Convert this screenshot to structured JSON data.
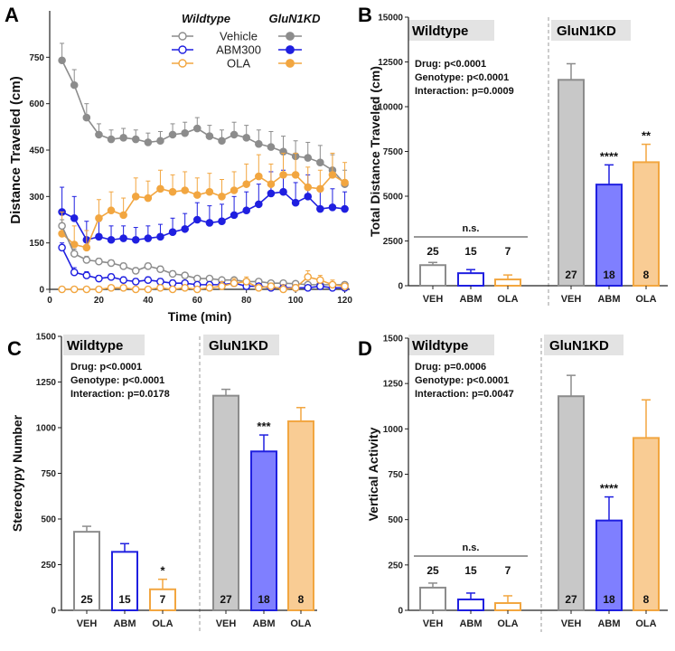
{
  "colors": {
    "vehicle": "#8c8c8c",
    "abm": "#1f1fe0",
    "ola": "#f2a640",
    "veh_fill": "#c8c8c8",
    "abm_fill": "#7f7fff",
    "ola_fill": "#f9cc94",
    "shade": "#e3e3e3"
  },
  "chart_data": [
    {
      "panel": "A",
      "type": "line",
      "xlabel": "Time (min)",
      "ylabel": "Distance Traveled (cm)",
      "xlim": [
        0,
        122
      ],
      "ylim": [
        0,
        900
      ],
      "xticks": [
        0,
        20,
        40,
        60,
        80,
        100,
        120
      ],
      "yticks": [
        0,
        150,
        300,
        450,
        600,
        750
      ],
      "legend": {
        "header_left": "Wildtype",
        "header_right": "GluN1KD",
        "labels": [
          "Vehicle",
          "ABM300",
          "OLA"
        ]
      },
      "x": [
        5,
        10,
        15,
        20,
        25,
        30,
        35,
        40,
        45,
        50,
        55,
        60,
        65,
        70,
        75,
        80,
        85,
        90,
        95,
        100,
        105,
        110,
        115,
        120
      ],
      "series": [
        {
          "name": "GluN1KD Vehicle",
          "color_key": "vehicle",
          "filled": true,
          "values": [
            740,
            660,
            555,
            500,
            485,
            490,
            485,
            475,
            480,
            500,
            505,
            520,
            495,
            480,
            500,
            490,
            470,
            460,
            445,
            430,
            425,
            410,
            385,
            340
          ],
          "errors": [
            55,
            50,
            45,
            35,
            30,
            30,
            30,
            30,
            30,
            35,
            35,
            35,
            35,
            35,
            40,
            40,
            45,
            50,
            50,
            50,
            50,
            55,
            50,
            45
          ]
        },
        {
          "name": "GluN1KD ABM300",
          "color_key": "abm",
          "filled": true,
          "values": [
            250,
            230,
            160,
            170,
            160,
            165,
            160,
            165,
            170,
            185,
            195,
            225,
            215,
            220,
            240,
            255,
            275,
            310,
            315,
            280,
            300,
            260,
            265,
            260
          ],
          "errors": [
            80,
            70,
            60,
            50,
            45,
            40,
            40,
            40,
            40,
            45,
            50,
            55,
            55,
            55,
            60,
            60,
            65,
            70,
            70,
            65,
            70,
            60,
            60,
            55
          ]
        },
        {
          "name": "GluN1KD OLA",
          "color_key": "ola",
          "filled": true,
          "values": [
            180,
            145,
            135,
            230,
            255,
            240,
            300,
            295,
            325,
            315,
            320,
            305,
            315,
            300,
            320,
            340,
            365,
            340,
            370,
            370,
            330,
            325,
            370,
            345
          ],
          "errors": [
            70,
            60,
            55,
            60,
            60,
            55,
            60,
            55,
            60,
            55,
            60,
            55,
            60,
            55,
            60,
            65,
            70,
            65,
            70,
            70,
            65,
            60,
            70,
            65
          ]
        },
        {
          "name": "Wildtype Vehicle",
          "color_key": "vehicle",
          "filled": false,
          "values": [
            205,
            115,
            95,
            90,
            85,
            75,
            60,
            75,
            65,
            50,
            45,
            35,
            35,
            30,
            30,
            25,
            25,
            20,
            20,
            18,
            15,
            15,
            15,
            15
          ],
          "errors": [
            20,
            15,
            12,
            10,
            10,
            10,
            10,
            10,
            10,
            10,
            8,
            8,
            8,
            8,
            8,
            8,
            8,
            8,
            8,
            8,
            8,
            8,
            8,
            8
          ]
        },
        {
          "name": "Wildtype ABM300",
          "color_key": "abm",
          "filled": false,
          "values": [
            135,
            55,
            45,
            35,
            40,
            30,
            25,
            30,
            25,
            20,
            20,
            15,
            15,
            15,
            20,
            10,
            10,
            5,
            5,
            5,
            5,
            10,
            5,
            5
          ],
          "errors": [
            15,
            15,
            12,
            10,
            10,
            10,
            10,
            10,
            10,
            10,
            8,
            8,
            8,
            8,
            8,
            8,
            8,
            8,
            8,
            8,
            8,
            8,
            8,
            8
          ]
        },
        {
          "name": "Wildtype OLA",
          "color_key": "ola",
          "filled": false,
          "values": [
            0,
            0,
            0,
            0,
            5,
            5,
            0,
            0,
            5,
            0,
            5,
            0,
            5,
            10,
            20,
            25,
            5,
            10,
            0,
            5,
            40,
            30,
            15,
            10
          ],
          "errors": [
            8,
            8,
            8,
            8,
            8,
            8,
            8,
            8,
            8,
            8,
            8,
            8,
            8,
            15,
            15,
            15,
            10,
            10,
            15,
            10,
            20,
            15,
            15,
            10
          ]
        }
      ]
    },
    {
      "panel": "B",
      "type": "bar",
      "ylabel": "Total Distance Traveled (cm)",
      "ylim": [
        0,
        15000
      ],
      "yticks": [
        0,
        2500,
        5000,
        7500,
        10000,
        12500,
        15000
      ],
      "left_title": "Wildtype",
      "right_title": "GluN1KD",
      "stats": [
        "Drug: p<0.0001",
        "Genotype: p<0.0001",
        "Interaction: p=0.0009"
      ],
      "ns_label": "n.s.",
      "n_pos": "above",
      "categories": [
        "VEH",
        "ABM",
        "OLA",
        "VEH",
        "ABM",
        "OLA"
      ],
      "values": [
        1150,
        700,
        350,
        11500,
        5650,
        6900
      ],
      "errors": [
        150,
        200,
        250,
        900,
        1100,
        1000
      ],
      "n": [
        "25",
        "15",
        "7",
        "27",
        "18",
        "8"
      ],
      "sig": [
        "",
        "",
        "",
        "",
        "****",
        "**"
      ]
    },
    {
      "panel": "C",
      "type": "bar",
      "ylabel": "Stereotypy Number",
      "ylim": [
        0,
        1500
      ],
      "yticks": [
        0,
        250,
        500,
        750,
        1000,
        1250,
        1500
      ],
      "left_title": "Wildtype",
      "right_title": "GluN1KD",
      "stats": [
        "Drug: p<0.0001",
        "Genotype: p<0.0001",
        "Interaction: p=0.0178"
      ],
      "ns_label": "",
      "n_pos": "inside",
      "categories": [
        "VEH",
        "ABM",
        "OLA",
        "VEH",
        "ABM",
        "OLA"
      ],
      "values": [
        430,
        320,
        115,
        1175,
        870,
        1035
      ],
      "errors": [
        30,
        45,
        55,
        35,
        90,
        75
      ],
      "n": [
        "25",
        "15",
        "7",
        "27",
        "18",
        "8"
      ],
      "sig": [
        "",
        "",
        "*",
        "",
        "***",
        ""
      ]
    },
    {
      "panel": "D",
      "type": "bar",
      "ylabel": "Vertical Activity",
      "ylim": [
        0,
        1500
      ],
      "yticks": [
        0,
        250,
        500,
        750,
        1000,
        1250,
        1500
      ],
      "left_title": "Wildtype",
      "right_title": "GluN1KD",
      "stats": [
        "Drug: p=0.0006",
        "Genotype: p<0.0001",
        "Interaction: p=0.0047"
      ],
      "ns_label": "n.s.",
      "n_pos": "above",
      "categories": [
        "VEH",
        "ABM",
        "OLA",
        "VEH",
        "ABM",
        "OLA"
      ],
      "values": [
        125,
        60,
        40,
        1180,
        495,
        950
      ],
      "errors": [
        25,
        35,
        40,
        115,
        130,
        210
      ],
      "n": [
        "25",
        "15",
        "7",
        "27",
        "18",
        "8"
      ],
      "sig": [
        "",
        "",
        "",
        "",
        "****",
        ""
      ]
    }
  ]
}
